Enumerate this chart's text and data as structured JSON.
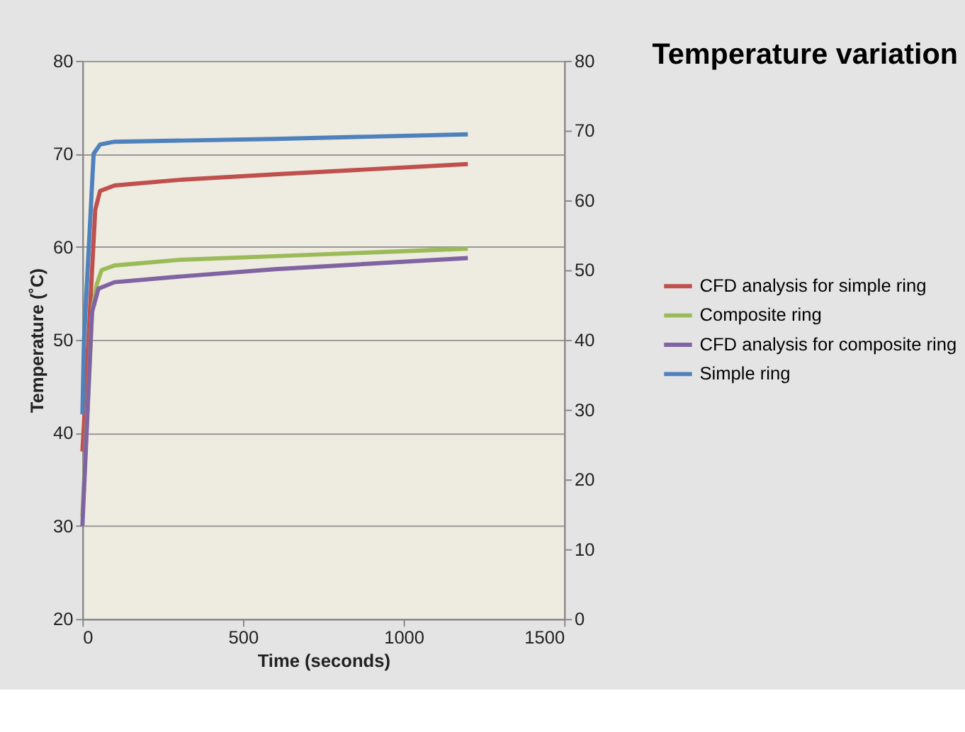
{
  "chart_data": {
    "type": "line",
    "title": "Temperature variation",
    "xlabel": "Time (seconds)",
    "ylabel": "Temperature (˚C)",
    "xlim": [
      0,
      1500
    ],
    "xticks": [
      0,
      500,
      1000,
      1500
    ],
    "ylim": [
      20,
      80
    ],
    "yticks": [
      20,
      30,
      40,
      50,
      60,
      70,
      80
    ],
    "y2lim": [
      0,
      80
    ],
    "y2ticks": [
      0,
      10,
      20,
      30,
      40,
      50,
      60,
      70,
      80
    ],
    "grid": "y",
    "legend": "right",
    "line_style": "solid",
    "series": [
      {
        "name": "CFD analysis for simple ring",
        "color": "#c0504d",
        "x": [
          0,
          5,
          40,
          55,
          100,
          300,
          600,
          1200
        ],
        "values": [
          38,
          41,
          64,
          66,
          66.6,
          67.2,
          67.8,
          68.9
        ]
      },
      {
        "name": "Composite ring",
        "color": "#9bbb59",
        "x": [
          0,
          30,
          45,
          60,
          100,
          300,
          600,
          1200
        ],
        "values": [
          31,
          53,
          56,
          57.5,
          58,
          58.6,
          59,
          59.8
        ]
      },
      {
        "name": "CFD analysis for composite ring",
        "color": "#8064a2",
        "x": [
          0,
          30,
          50,
          100,
          300,
          600,
          1200
        ],
        "values": [
          30,
          53,
          55.5,
          56.2,
          56.8,
          57.6,
          58.8
        ]
      },
      {
        "name": "Simple ring",
        "color": "#4f81bd",
        "x": [
          0,
          5,
          35,
          55,
          100,
          600,
          1200
        ],
        "values": [
          42,
          50,
          70,
          71,
          71.3,
          71.6,
          72.1
        ]
      }
    ]
  }
}
